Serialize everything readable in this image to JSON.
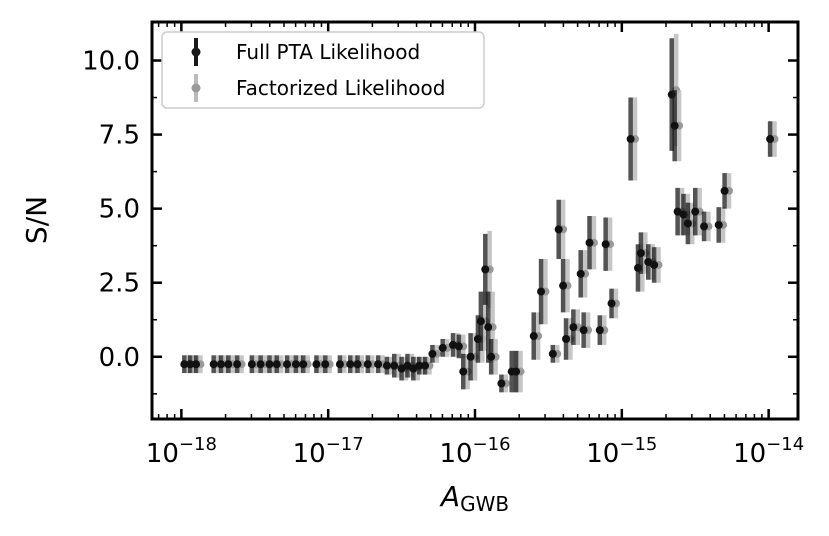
{
  "chart_data": {
    "type": "scatter",
    "ylabel": "S/N",
    "xlabel_main": "A",
    "xlabel_sub": "GWB",
    "xscale": "log",
    "xlim_exp": [
      -18.2,
      -13.8
    ],
    "ylim": [
      -2.1,
      11.3
    ],
    "yticks": [
      0.0,
      2.5,
      5.0,
      7.5,
      10.0
    ],
    "ytick_labels": [
      "0.0",
      "2.5",
      "5.0",
      "7.5",
      "10.0"
    ],
    "xticks_exp": [
      -18,
      -17,
      -16,
      -15,
      -14
    ],
    "xtick_labels": [
      "10",
      "10",
      "10",
      "10",
      "10"
    ],
    "xtick_exponents": [
      "−18",
      "−17",
      "−16",
      "−15",
      "−14"
    ],
    "legend_position": "top-left",
    "series": [
      {
        "name": "Full PTA Likelihood",
        "color": "#1a1a1a",
        "points": [
          [
            -17.98,
            -0.25,
            0.3
          ],
          [
            -17.94,
            -0.25,
            0.3
          ],
          [
            -17.9,
            -0.25,
            0.3
          ],
          [
            -17.78,
            -0.25,
            0.3
          ],
          [
            -17.73,
            -0.25,
            0.3
          ],
          [
            -17.68,
            -0.25,
            0.3
          ],
          [
            -17.62,
            -0.25,
            0.3
          ],
          [
            -17.52,
            -0.25,
            0.3
          ],
          [
            -17.46,
            -0.25,
            0.3
          ],
          [
            -17.4,
            -0.25,
            0.3
          ],
          [
            -17.35,
            -0.25,
            0.3
          ],
          [
            -17.28,
            -0.25,
            0.3
          ],
          [
            -17.22,
            -0.25,
            0.3
          ],
          [
            -17.17,
            -0.25,
            0.3
          ],
          [
            -17.08,
            -0.25,
            0.3
          ],
          [
            -17.02,
            -0.25,
            0.3
          ],
          [
            -16.92,
            -0.25,
            0.3
          ],
          [
            -16.85,
            -0.25,
            0.3
          ],
          [
            -16.8,
            -0.25,
            0.3
          ],
          [
            -16.73,
            -0.25,
            0.3
          ],
          [
            -16.66,
            -0.25,
            0.3
          ],
          [
            -16.6,
            -0.3,
            0.3
          ],
          [
            -16.55,
            -0.3,
            0.4
          ],
          [
            -16.5,
            -0.4,
            0.4
          ],
          [
            -16.46,
            -0.3,
            0.4
          ],
          [
            -16.42,
            -0.4,
            0.4
          ],
          [
            -16.38,
            -0.3,
            0.3
          ],
          [
            -16.34,
            -0.3,
            0.3
          ],
          [
            -16.29,
            0.1,
            0.3
          ],
          [
            -16.22,
            0.3,
            0.3
          ],
          [
            -16.15,
            0.4,
            0.4
          ],
          [
            -16.11,
            0.35,
            0.4
          ],
          [
            -16.08,
            -0.5,
            0.6
          ],
          [
            -16.03,
            0.0,
            0.8
          ],
          [
            -15.98,
            0.6,
            0.8
          ],
          [
            -15.96,
            1.2,
            1.0
          ],
          [
            -15.93,
            2.95,
            1.2
          ],
          [
            -15.91,
            1.0,
            1.2
          ],
          [
            -15.89,
            0.0,
            0.6
          ],
          [
            -15.82,
            -0.9,
            0.3
          ],
          [
            -15.75,
            -0.5,
            0.7
          ],
          [
            -15.72,
            -0.5,
            0.7
          ],
          [
            -15.6,
            0.7,
            0.8
          ],
          [
            -15.55,
            2.2,
            1.1
          ],
          [
            -15.47,
            0.1,
            0.3
          ],
          [
            -15.43,
            4.3,
            1.0
          ],
          [
            -15.4,
            2.4,
            0.9
          ],
          [
            -15.38,
            0.6,
            0.7
          ],
          [
            -15.33,
            1.0,
            0.6
          ],
          [
            -15.28,
            2.8,
            0.8
          ],
          [
            -15.26,
            0.9,
            0.6
          ],
          [
            -15.22,
            3.85,
            0.9
          ],
          [
            -15.15,
            0.9,
            0.5
          ],
          [
            -15.11,
            3.8,
            0.9
          ],
          [
            -15.07,
            1.8,
            0.5
          ],
          [
            -14.94,
            7.35,
            1.4
          ],
          [
            -14.89,
            3.0,
            0.8
          ],
          [
            -14.87,
            3.5,
            0.7
          ],
          [
            -14.82,
            3.2,
            0.6
          ],
          [
            -14.78,
            3.1,
            0.6
          ],
          [
            -14.66,
            8.85,
            1.9
          ],
          [
            -14.64,
            7.8,
            1.2
          ],
          [
            -14.62,
            4.9,
            0.8
          ],
          [
            -14.58,
            4.8,
            0.7
          ],
          [
            -14.55,
            4.5,
            0.7
          ],
          [
            -14.5,
            4.9,
            0.8
          ],
          [
            -14.44,
            4.4,
            0.5
          ],
          [
            -14.34,
            4.45,
            0.6
          ],
          [
            -14.3,
            5.6,
            0.6
          ],
          [
            -13.99,
            7.35,
            0.6
          ]
        ]
      },
      {
        "name": "Factorized Likelihood",
        "color": "#bcbcbc",
        "points": [
          [
            -17.95,
            -0.25,
            0.3
          ],
          [
            -17.91,
            -0.25,
            0.3
          ],
          [
            -17.87,
            -0.25,
            0.3
          ],
          [
            -17.75,
            -0.25,
            0.3
          ],
          [
            -17.7,
            -0.25,
            0.3
          ],
          [
            -17.65,
            -0.25,
            0.3
          ],
          [
            -17.59,
            -0.25,
            0.3
          ],
          [
            -17.49,
            -0.25,
            0.3
          ],
          [
            -17.43,
            -0.25,
            0.3
          ],
          [
            -17.37,
            -0.25,
            0.3
          ],
          [
            -17.32,
            -0.25,
            0.3
          ],
          [
            -17.25,
            -0.25,
            0.3
          ],
          [
            -17.19,
            -0.25,
            0.3
          ],
          [
            -17.14,
            -0.25,
            0.3
          ],
          [
            -17.05,
            -0.25,
            0.3
          ],
          [
            -16.99,
            -0.25,
            0.3
          ],
          [
            -16.89,
            -0.25,
            0.3
          ],
          [
            -16.82,
            -0.25,
            0.3
          ],
          [
            -16.77,
            -0.25,
            0.3
          ],
          [
            -16.7,
            -0.25,
            0.3
          ],
          [
            -16.63,
            -0.25,
            0.3
          ],
          [
            -16.57,
            -0.3,
            0.3
          ],
          [
            -16.52,
            -0.3,
            0.4
          ],
          [
            -16.47,
            -0.4,
            0.4
          ],
          [
            -16.43,
            -0.3,
            0.4
          ],
          [
            -16.39,
            -0.4,
            0.4
          ],
          [
            -16.35,
            -0.3,
            0.3
          ],
          [
            -16.31,
            -0.3,
            0.3
          ],
          [
            -16.26,
            0.1,
            0.3
          ],
          [
            -16.19,
            0.3,
            0.3
          ],
          [
            -16.12,
            0.4,
            0.4
          ],
          [
            -16.08,
            0.35,
            0.4
          ],
          [
            -16.05,
            -0.5,
            0.6
          ],
          [
            -16.0,
            0.0,
            0.8
          ],
          [
            -15.95,
            0.6,
            0.8
          ],
          [
            -15.93,
            1.2,
            1.0
          ],
          [
            -15.9,
            2.95,
            1.3
          ],
          [
            -15.88,
            1.0,
            1.2
          ],
          [
            -15.86,
            0.0,
            0.6
          ],
          [
            -15.79,
            -0.9,
            0.3
          ],
          [
            -15.72,
            -0.5,
            0.7
          ],
          [
            -15.69,
            -0.5,
            0.7
          ],
          [
            -15.57,
            0.7,
            0.8
          ],
          [
            -15.52,
            2.2,
            1.1
          ],
          [
            -15.44,
            0.1,
            0.3
          ],
          [
            -15.4,
            4.3,
            1.0
          ],
          [
            -15.37,
            2.4,
            0.9
          ],
          [
            -15.35,
            0.6,
            0.7
          ],
          [
            -15.3,
            1.0,
            0.6
          ],
          [
            -15.25,
            2.8,
            0.8
          ],
          [
            -15.23,
            0.9,
            0.6
          ],
          [
            -15.19,
            3.85,
            0.9
          ],
          [
            -15.12,
            0.9,
            0.5
          ],
          [
            -15.08,
            3.8,
            0.9
          ],
          [
            -15.04,
            1.8,
            0.5
          ],
          [
            -14.91,
            7.35,
            1.4
          ],
          [
            -14.86,
            3.0,
            0.8
          ],
          [
            -14.84,
            3.5,
            0.7
          ],
          [
            -14.79,
            3.2,
            0.6
          ],
          [
            -14.75,
            3.1,
            0.6
          ],
          [
            -14.63,
            9.0,
            1.9
          ],
          [
            -14.61,
            7.8,
            1.2
          ],
          [
            -14.59,
            4.9,
            0.8
          ],
          [
            -14.55,
            4.8,
            0.7
          ],
          [
            -14.52,
            4.5,
            0.7
          ],
          [
            -14.47,
            4.9,
            0.8
          ],
          [
            -14.41,
            4.4,
            0.5
          ],
          [
            -14.31,
            4.45,
            0.6
          ],
          [
            -14.27,
            5.6,
            0.6
          ],
          [
            -13.96,
            7.35,
            0.6
          ]
        ]
      }
    ]
  }
}
